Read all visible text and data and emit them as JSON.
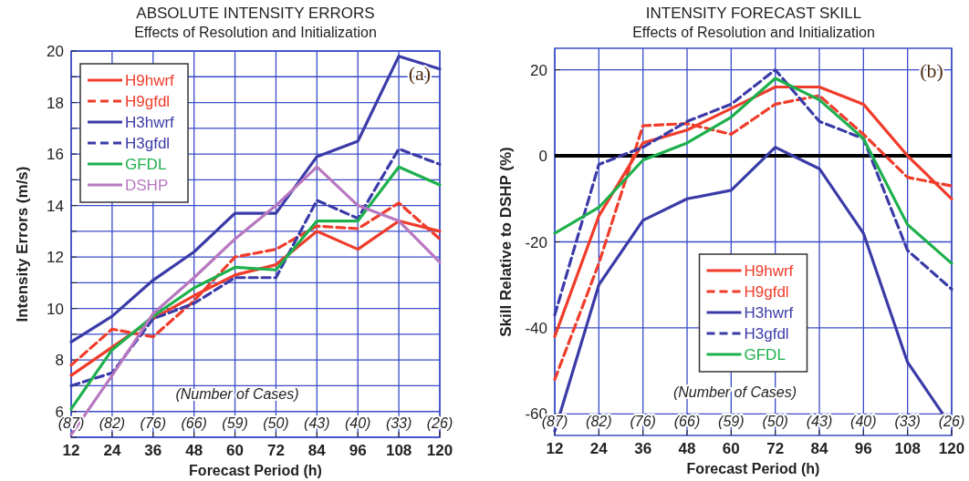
{
  "chart_data": [
    {
      "type": "line",
      "title": "ABSOLUTE INTENSITY ERRORS",
      "subtitle": "Effects of Resolution and Initialization",
      "xlabel": "Forecast Period (h)",
      "ylabel": "Intensity Errors (m/s)",
      "x": [
        12,
        24,
        36,
        48,
        60,
        72,
        84,
        96,
        108,
        120
      ],
      "xlim": [
        12,
        120
      ],
      "xticks": [
        12,
        24,
        36,
        48,
        60,
        72,
        84,
        96,
        108,
        120
      ],
      "ylim": [
        5,
        20
      ],
      "yticks": [
        {
          "value": 5,
          "label": null
        },
        6,
        {
          "value": 7,
          "label": null
        },
        8,
        {
          "value": 9,
          "label": null
        },
        10,
        {
          "value": 11,
          "label": null
        },
        12,
        {
          "value": 13,
          "label": null
        },
        14,
        {
          "value": 15,
          "label": null
        },
        16,
        {
          "value": 17,
          "label": null
        },
        18,
        {
          "value": 19,
          "label": null
        },
        20
      ],
      "grid": true,
      "legend": "top left",
      "series": [
        {
          "name": "H9hwrf",
          "color": "#f03c2a",
          "line_style": "solid",
          "values": [
            7.4,
            8.5,
            9.6,
            10.5,
            11.3,
            11.7,
            13.0,
            12.3,
            13.4,
            13.0
          ]
        },
        {
          "name": "H9gfdl",
          "color": "#f03c2a",
          "line_style": "dashed",
          "values": [
            7.8,
            9.2,
            8.9,
            10.3,
            12.0,
            12.3,
            13.2,
            13.1,
            14.1,
            12.7
          ]
        },
        {
          "name": "H3hwrf",
          "color": "#3b3ba8",
          "line_style": "solid",
          "values": [
            8.7,
            9.7,
            11.1,
            12.2,
            13.7,
            13.7,
            15.9,
            16.5,
            19.8,
            19.3
          ]
        },
        {
          "name": "H3gfdl",
          "color": "#3b3ba8",
          "line_style": "dashed",
          "values": [
            7.0,
            7.5,
            9.6,
            10.2,
            11.2,
            11.2,
            14.2,
            13.5,
            16.2,
            15.6
          ]
        },
        {
          "name": "GFDL",
          "color": "#1db04c",
          "line_style": "solid",
          "values": [
            6.1,
            8.4,
            9.7,
            10.8,
            11.6,
            11.5,
            13.4,
            13.4,
            15.5,
            14.8
          ]
        },
        {
          "name": "DSHP",
          "color": "#b878c0",
          "line_style": "solid",
          "values": [
            5.1,
            7.4,
            9.8,
            11.2,
            12.7,
            14.0,
            15.5,
            14.0,
            13.4,
            11.8
          ]
        }
      ],
      "annotations": [
        "(a)",
        "(Number of Cases)",
        "(87)",
        "(82)",
        "(76)",
        "(66)",
        "(59)",
        "(50)",
        "(43)",
        "(40)",
        "(33)",
        "(26)"
      ]
    },
    {
      "type": "line",
      "title": "INTENSITY FORECAST SKILL",
      "subtitle": "Effects of Resolution and Initialization",
      "xlabel": "Forecast Period (h)",
      "ylabel": "Skill Relative to DSHP (%)",
      "x": [
        12,
        24,
        36,
        48,
        60,
        72,
        84,
        96,
        108,
        120
      ],
      "xlim": [
        12,
        120
      ],
      "xticks": [
        12,
        24,
        36,
        48,
        60,
        72,
        84,
        96,
        108,
        120
      ],
      "ylim": [
        -65,
        25
      ],
      "yticks": [
        -60,
        -40,
        -20,
        0,
        20
      ],
      "grid": true,
      "legend": "bottom",
      "ref_lines": [
        {
          "axis": "y",
          "value": 0,
          "label": null,
          "color": "#000000"
        }
      ],
      "series": [
        {
          "name": "H9hwrf",
          "color": "#f03c2a",
          "line_style": "solid",
          "values": [
            -42,
            -14,
            3,
            6,
            11,
            16,
            16,
            12,
            0,
            -10
          ]
        },
        {
          "name": "H9gfdl",
          "color": "#f03c2a",
          "line_style": "dashed",
          "values": [
            -52,
            -25,
            7,
            7.5,
            5,
            12,
            14,
            5,
            -5,
            -7
          ]
        },
        {
          "name": "H3hwrf",
          "color": "#3b3ba8",
          "line_style": "solid",
          "values": [
            -64,
            -30,
            -15,
            -10,
            -8,
            2,
            -3,
            -18,
            -48,
            -63
          ]
        },
        {
          "name": "H3gfdl",
          "color": "#3b3ba8",
          "line_style": "dashed",
          "values": [
            -37,
            -2,
            2,
            8,
            12,
            20,
            8,
            4,
            -22,
            -31
          ]
        },
        {
          "name": "GFDL",
          "color": "#1db04c",
          "line_style": "solid",
          "values": [
            -18,
            -12,
            -1,
            3,
            9,
            18,
            13,
            4,
            -16,
            -25
          ]
        }
      ],
      "annotations": [
        "(b)",
        "(Number of Cases)",
        "(87)",
        "(82)",
        "(76)",
        "(66)",
        "(59)",
        "(50)",
        "(43)",
        "(40)",
        "(33)",
        "(26)"
      ]
    }
  ]
}
